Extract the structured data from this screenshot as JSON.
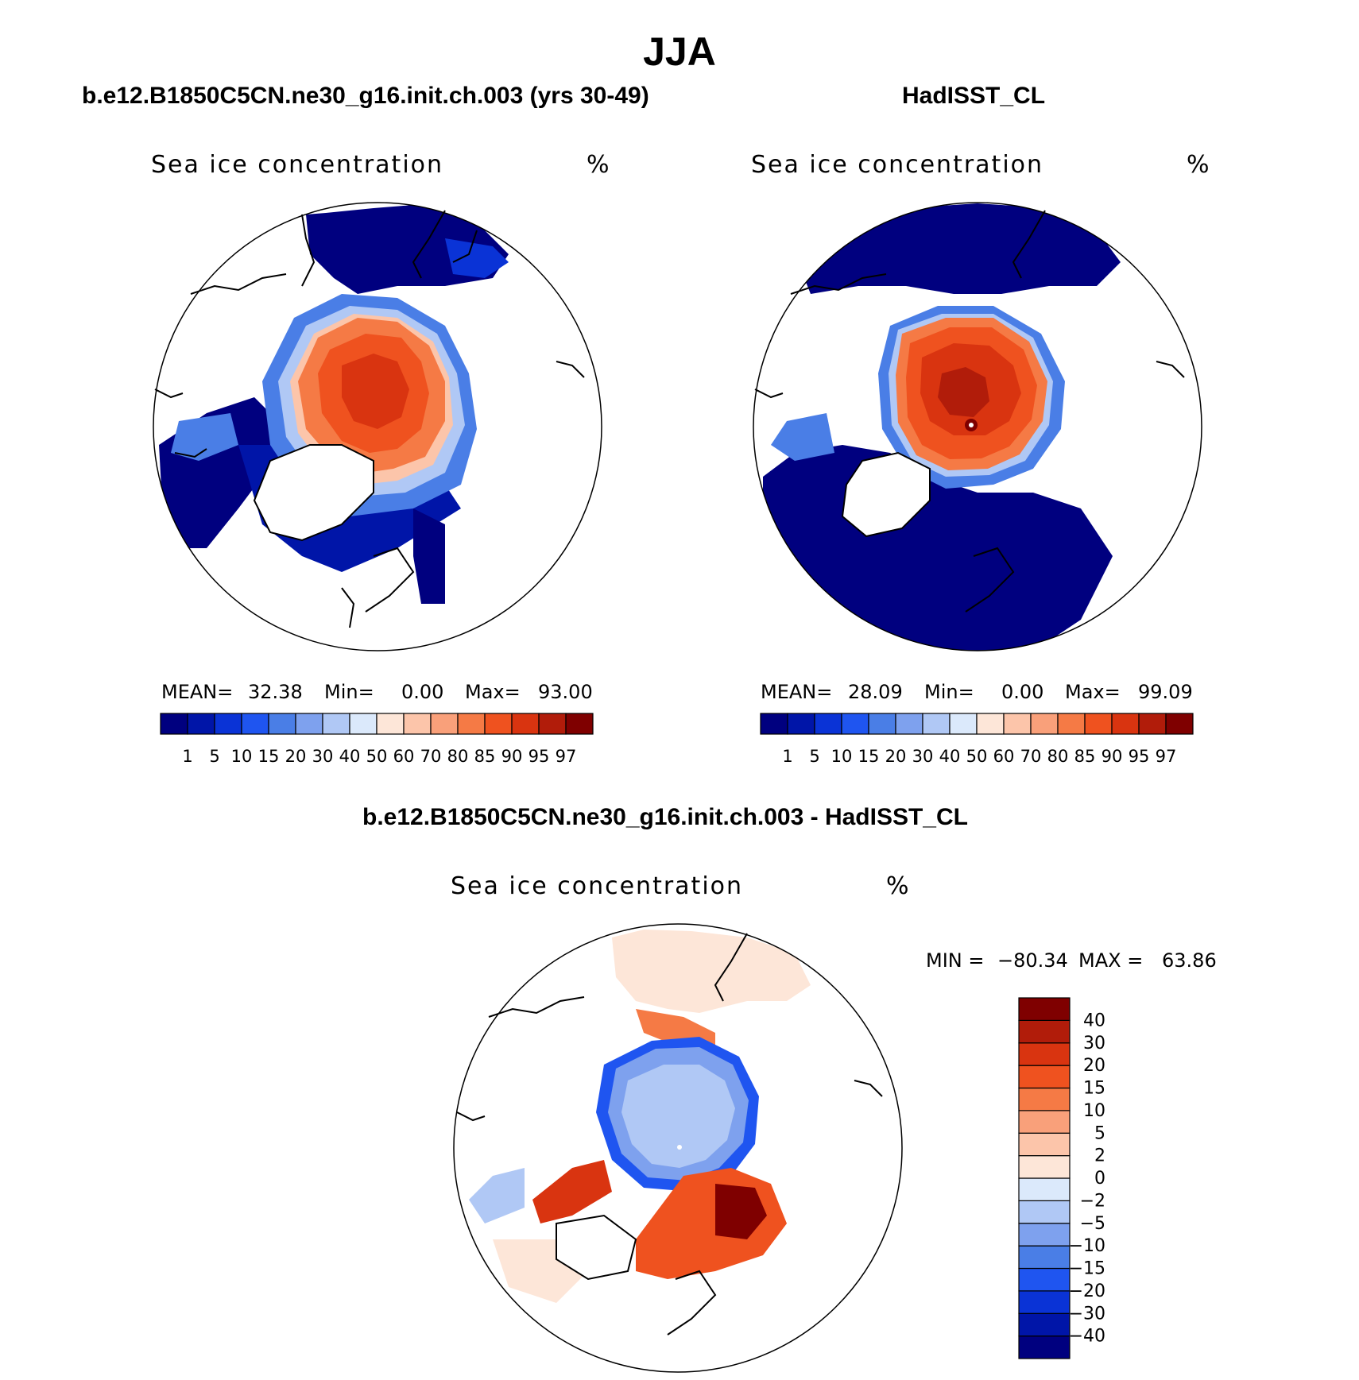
{
  "title": "JJA",
  "panels": [
    {
      "case_title": "b.e12.B1850C5CN.ne30_g16.init.ch.003 (yrs 30-49)",
      "variable": "Sea ice concentration",
      "units": "%",
      "mean_label": "MEAN=",
      "mean_value": "32.38",
      "min_label": "Min=",
      "min_value": "0.00",
      "max_label": "Max=",
      "max_value": "93.00"
    },
    {
      "case_title": "HadISST_CL",
      "variable": "Sea ice concentration",
      "units": "%",
      "mean_label": "MEAN=",
      "mean_value": "28.09",
      "min_label": "Min=",
      "min_value": "0.00",
      "max_label": "Max=",
      "max_value": "99.09"
    }
  ],
  "diff_panel": {
    "case_title": "b.e12.B1850C5CN.ne30_g16.init.ch.003 - HadISST_CL",
    "variable": "Sea ice concentration",
    "units": "%",
    "min_label": "MIN =",
    "min_value": "−80.34",
    "max_label": "MAX =",
    "max_value": "63.86"
  },
  "chart_data": [
    {
      "type": "heatmap",
      "title": "b.e12.B1850C5CN.ne30_g16.init.ch.003 (yrs 30-49)",
      "projection": "north polar stereographic",
      "levels": [
        1,
        5,
        10,
        15,
        20,
        30,
        40,
        50,
        60,
        70,
        80,
        85,
        90,
        95,
        97
      ],
      "colors": [
        "#00007f",
        "#0015a8",
        "#0a33d6",
        "#1f55f0",
        "#4a7ee6",
        "#7ea1ee",
        "#b0c8f5",
        "#dbe9fb",
        "#fde6d8",
        "#fcc5aa",
        "#f9a07a",
        "#f57a45",
        "#ef521f",
        "#d93410",
        "#b11c0a",
        "#7f0000"
      ],
      "stats": {
        "mean": 32.38,
        "min": 0.0,
        "max": 93.0
      }
    },
    {
      "type": "heatmap",
      "title": "HadISST_CL",
      "projection": "north polar stereographic",
      "levels": [
        1,
        5,
        10,
        15,
        20,
        30,
        40,
        50,
        60,
        70,
        80,
        85,
        90,
        95,
        97
      ],
      "colors": [
        "#00007f",
        "#0015a8",
        "#0a33d6",
        "#1f55f0",
        "#4a7ee6",
        "#7ea1ee",
        "#b0c8f5",
        "#dbe9fb",
        "#fde6d8",
        "#fcc5aa",
        "#f9a07a",
        "#f57a45",
        "#ef521f",
        "#d93410",
        "#b11c0a",
        "#7f0000"
      ],
      "stats": {
        "mean": 28.09,
        "min": 0.0,
        "max": 99.09
      }
    },
    {
      "type": "heatmap",
      "title": "b.e12.B1850C5CN.ne30_g16.init.ch.003 - HadISST_CL",
      "projection": "north polar stereographic",
      "levels": [
        -40,
        -30,
        -20,
        -15,
        -10,
        -5,
        -2,
        0,
        2,
        5,
        10,
        15,
        20,
        30,
        40
      ],
      "level_labels": [
        "−40",
        "−30",
        "−20",
        "−15",
        "−10",
        "−5",
        "−2",
        "0",
        "2",
        "5",
        "10",
        "15",
        "20",
        "30",
        "40"
      ],
      "colors": [
        "#00007f",
        "#0015a8",
        "#0a33d6",
        "#1f55f0",
        "#4a7ee6",
        "#7ea1ee",
        "#b0c8f5",
        "#dbe9fb",
        "#fde6d8",
        "#fcc5aa",
        "#f9a07a",
        "#f57a45",
        "#ef521f",
        "#d93410",
        "#b11c0a",
        "#7f0000"
      ],
      "stats": {
        "min": -80.34,
        "max": 63.86
      }
    }
  ]
}
